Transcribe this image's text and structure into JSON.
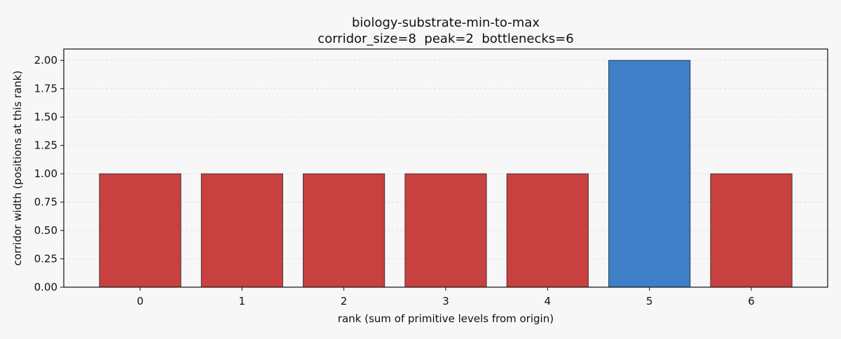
{
  "chart_data": {
    "type": "bar",
    "title": "biology-substrate-min-to-max",
    "subtitle": "corridor_size=8  peak=2  bottlenecks=6",
    "xlabel": "rank (sum of primitive levels from origin)",
    "ylabel": "corridor width (positions at this rank)",
    "categories": [
      "0",
      "1",
      "2",
      "3",
      "4",
      "5",
      "6"
    ],
    "values": [
      1,
      1,
      1,
      1,
      1,
      2,
      1
    ],
    "highlight": [
      false,
      false,
      false,
      false,
      false,
      true,
      false
    ],
    "ylim": [
      0,
      2.1
    ],
    "yticks": [
      "0.00",
      "0.25",
      "0.50",
      "0.75",
      "1.00",
      "1.25",
      "1.50",
      "1.75",
      "2.00"
    ],
    "grid": "y-dashed",
    "legend": "none",
    "colors": {
      "bottleneck": "#c94040",
      "peak": "#3e7fc7",
      "background": "#f7f7f7"
    }
  }
}
